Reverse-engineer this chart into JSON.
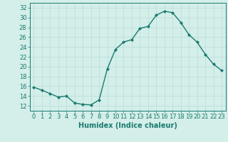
{
  "x": [
    0,
    1,
    2,
    3,
    4,
    5,
    6,
    7,
    8,
    9,
    10,
    11,
    12,
    13,
    14,
    15,
    16,
    17,
    18,
    19,
    20,
    21,
    22,
    23
  ],
  "y": [
    15.8,
    15.2,
    14.5,
    13.8,
    14.0,
    12.6,
    12.3,
    12.2,
    13.2,
    19.5,
    23.5,
    25.0,
    25.5,
    27.8,
    28.2,
    30.5,
    31.3,
    31.0,
    29.0,
    26.5,
    25.0,
    22.5,
    20.5,
    19.2
  ],
  "line_color": "#1a7a6e",
  "marker": "D",
  "marker_size": 2,
  "linewidth": 1.0,
  "xlabel": "Humidex (Indice chaleur)",
  "ylim": [
    11,
    33
  ],
  "xlim": [
    -0.5,
    23.5
  ],
  "yticks": [
    12,
    14,
    16,
    18,
    20,
    22,
    24,
    26,
    28,
    30,
    32
  ],
  "xticks": [
    0,
    1,
    2,
    3,
    4,
    5,
    6,
    7,
    8,
    9,
    10,
    11,
    12,
    13,
    14,
    15,
    16,
    17,
    18,
    19,
    20,
    21,
    22,
    23
  ],
  "background_color": "#d4eeea",
  "grid_color": "#b8ddd8",
  "label_color": "#1a7a6e",
  "xlabel_fontsize": 7,
  "tick_fontsize": 6
}
